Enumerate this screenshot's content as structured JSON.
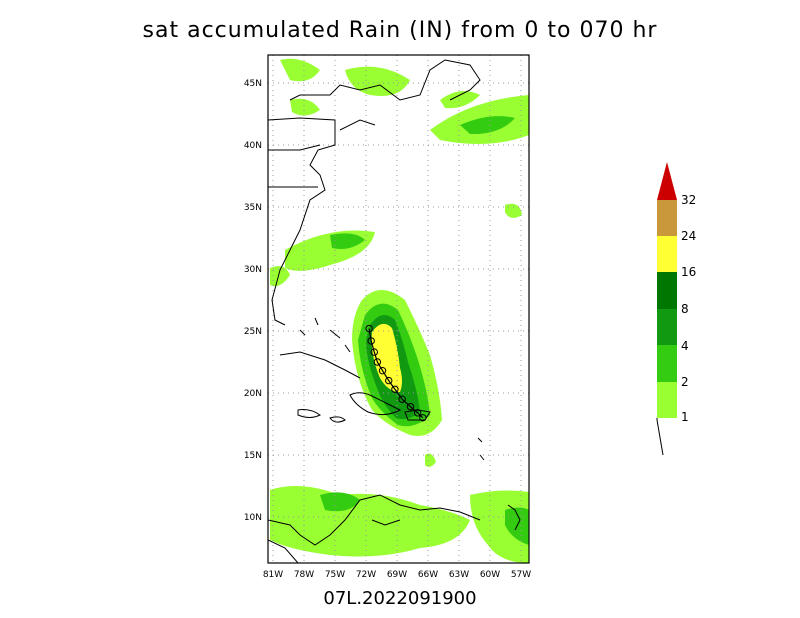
{
  "title": "sat accumulated Rain (IN) from 0 to 070 hr",
  "footer": "07L.2022091900",
  "lat_ticks": [
    "45N",
    "40N",
    "35N",
    "30N",
    "25N",
    "20N",
    "15N",
    "10N"
  ],
  "lon_ticks": [
    "81W",
    "78W",
    "75W",
    "72W",
    "69W",
    "66W",
    "63W",
    "60W",
    "57W"
  ],
  "colorbar": {
    "labels": [
      "1",
      "2",
      "4",
      "8",
      "16",
      "24",
      "32"
    ],
    "colors": [
      "#99ff33",
      "#33cc11",
      "#119911",
      "#007700",
      "#ffff33",
      "#c8983a",
      "#f0a030",
      "#cc0000"
    ]
  },
  "storm_track": {
    "name": "07L",
    "points": [
      [
        -66.5,
        18.0
      ],
      [
        -67.0,
        18.4
      ],
      [
        -67.7,
        18.9
      ],
      [
        -68.5,
        19.5
      ],
      [
        -69.2,
        20.3
      ],
      [
        -69.8,
        21.0
      ],
      [
        -70.4,
        21.8
      ],
      [
        -70.9,
        22.5
      ],
      [
        -71.2,
        23.3
      ],
      [
        -71.5,
        24.2
      ],
      [
        -71.7,
        25.2
      ]
    ]
  }
}
